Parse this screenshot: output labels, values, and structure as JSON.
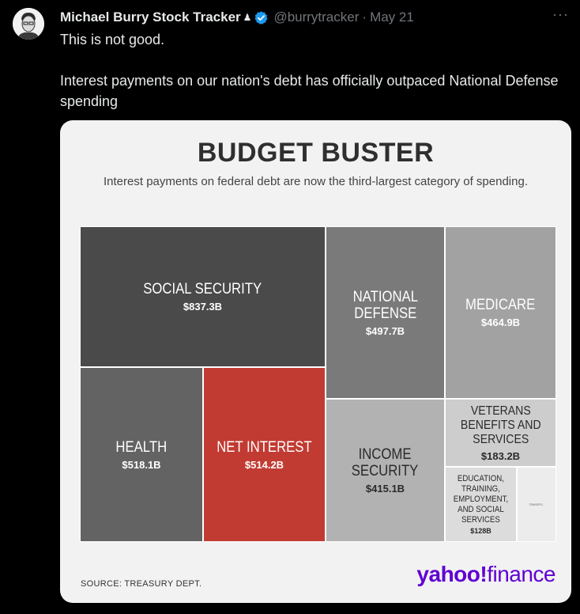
{
  "tweet": {
    "author_name": "Michael Burry Stock Tracker",
    "badge_glyph": "♟",
    "handle": "@burrytracker",
    "separator": "·",
    "date": "May 21",
    "more_glyph": "···",
    "text_line1": "This is not good.",
    "text_line2": "Interest payments on our nation's debt has officially outpaced National Defense spending"
  },
  "image": {
    "title": "BUDGET BUSTER",
    "subtitle": "Interest payments on federal debt are now the third-largest category of spending.",
    "source": "SOURCE: TREASURY DEPT.",
    "logo_yahoo": "yahoo!",
    "logo_finance": "finance",
    "tiles": [
      {
        "name": "SOCIAL SECURITY",
        "value": "$837.3B",
        "color": "#4a4a4a"
      },
      {
        "name": "NATIONAL\nDEFENSE",
        "value": "$497.7B",
        "color": "#7a7a7a"
      },
      {
        "name": "MEDICARE",
        "value": "$464.9B",
        "color": "#a2a2a2"
      },
      {
        "name": "HEALTH",
        "value": "$518.1B",
        "color": "#636363"
      },
      {
        "name": "NET INTEREST",
        "value": "$514.2B",
        "color": "#c13b33"
      },
      {
        "name": "INCOME\nSECURITY",
        "value": "$415.1B",
        "color": "#b2b2b2"
      },
      {
        "name": "VETERANS\nBENEFITS AND\nSERVICES",
        "value": "$183.2B",
        "color": "#cdcdcd"
      },
      {
        "name": "EDUCATION,\nTRAINING,\nEMPLOYMENT,\nAND SOCIAL\nSERVICES",
        "value": "$128B",
        "color": "#dcdcdc"
      },
      {
        "name": "TRANSPO...",
        "value": "",
        "color": "#ececec"
      }
    ]
  },
  "colors": {
    "background": "#000000",
    "verified": "#1d9bf0",
    "yahoo_purple": "#6001d2"
  }
}
